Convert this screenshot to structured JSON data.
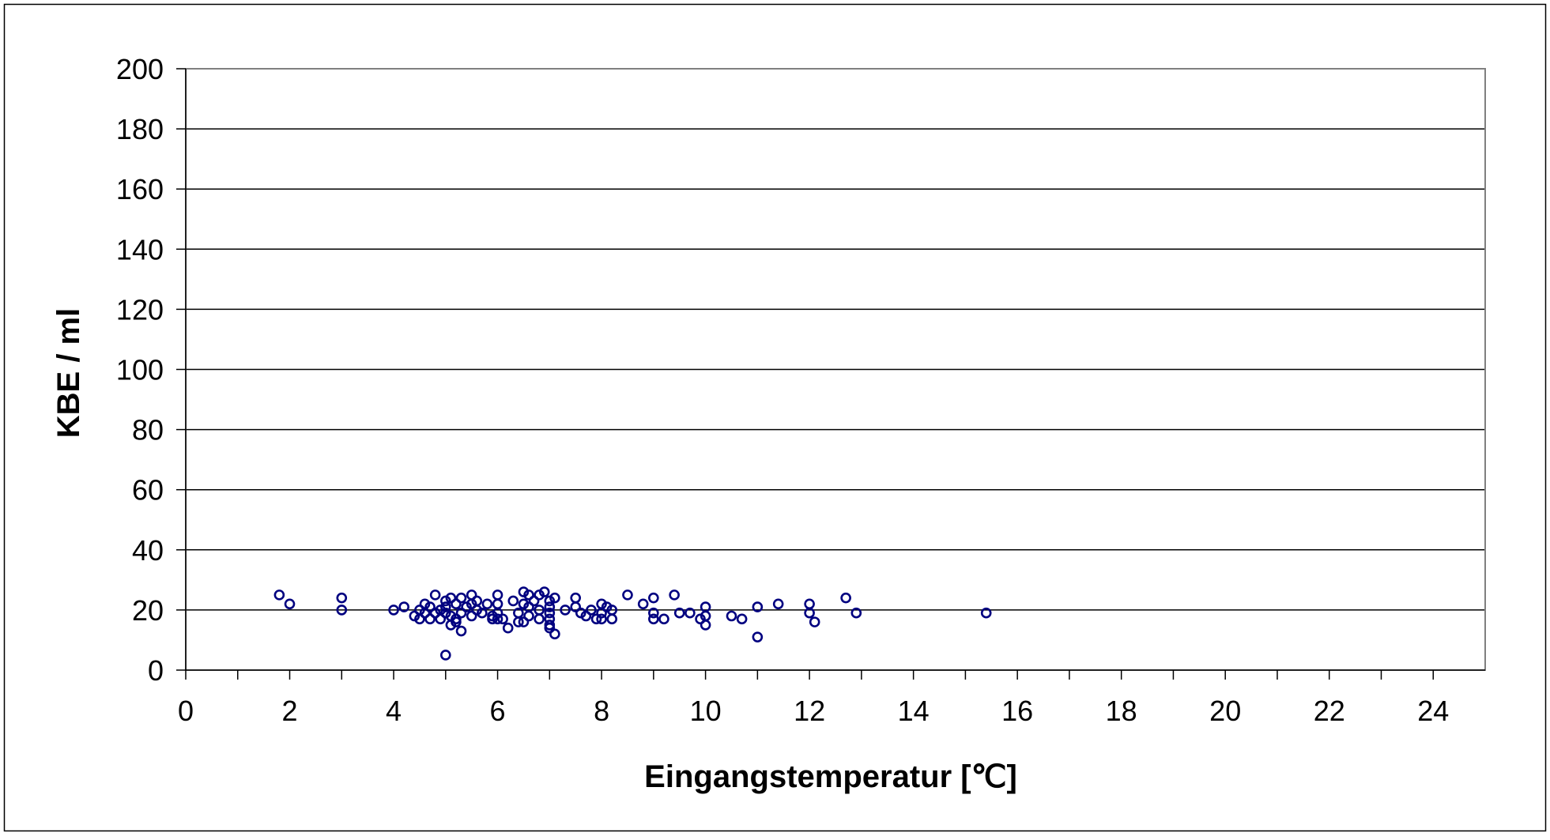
{
  "chart_data": {
    "type": "scatter",
    "title": "",
    "xlabel": "Eingangstemperatur [℃]",
    "ylabel": "KBE / ml",
    "xlim": [
      0,
      25
    ],
    "ylim": [
      0,
      200
    ],
    "x_ticks": [
      "0",
      "2",
      "4",
      "6",
      "8",
      "10",
      "12",
      "14",
      "16",
      "18",
      "20",
      "22",
      "24"
    ],
    "y_ticks": [
      "0",
      "20",
      "40",
      "60",
      "80",
      "100",
      "120",
      "140",
      "160",
      "180",
      "200"
    ],
    "grid": "horizontal",
    "legend": "none",
    "colors": {
      "marker": "#000080",
      "grid": "#000000",
      "plot_border": "#808080",
      "text": "#000000"
    },
    "series": [
      {
        "marker": "open-circle",
        "points": [
          [
            1.8,
            25
          ],
          [
            2.0,
            22
          ],
          [
            3.0,
            24
          ],
          [
            3.0,
            20
          ],
          [
            4.0,
            20
          ],
          [
            4.2,
            21
          ],
          [
            4.4,
            18
          ],
          [
            4.5,
            17
          ],
          [
            4.5,
            20
          ],
          [
            4.6,
            22
          ],
          [
            4.6,
            19
          ],
          [
            4.7,
            17
          ],
          [
            4.7,
            21
          ],
          [
            4.8,
            25
          ],
          [
            4.8,
            19
          ],
          [
            4.9,
            20
          ],
          [
            4.9,
            17
          ],
          [
            5.0,
            23
          ],
          [
            5.0,
            21
          ],
          [
            5.0,
            19
          ],
          [
            5.0,
            5
          ],
          [
            5.1,
            24
          ],
          [
            5.1,
            18
          ],
          [
            5.1,
            15
          ],
          [
            5.2,
            22
          ],
          [
            5.2,
            17
          ],
          [
            5.2,
            16
          ],
          [
            5.3,
            24
          ],
          [
            5.3,
            19
          ],
          [
            5.3,
            13
          ],
          [
            5.4,
            21
          ],
          [
            5.5,
            25
          ],
          [
            5.5,
            22
          ],
          [
            5.5,
            18
          ],
          [
            5.6,
            23
          ],
          [
            5.6,
            20
          ],
          [
            5.7,
            19
          ],
          [
            5.8,
            22
          ],
          [
            5.9,
            18
          ],
          [
            5.9,
            17
          ],
          [
            6.0,
            25
          ],
          [
            6.0,
            22
          ],
          [
            6.0,
            19
          ],
          [
            6.0,
            17
          ],
          [
            6.1,
            17
          ],
          [
            6.2,
            14
          ],
          [
            6.3,
            23
          ],
          [
            6.4,
            19
          ],
          [
            6.4,
            16
          ],
          [
            6.5,
            26
          ],
          [
            6.5,
            22
          ],
          [
            6.5,
            16
          ],
          [
            6.6,
            25
          ],
          [
            6.6,
            21
          ],
          [
            6.6,
            18
          ],
          [
            6.7,
            23
          ],
          [
            6.8,
            25
          ],
          [
            6.8,
            20
          ],
          [
            6.8,
            17
          ],
          [
            6.9,
            26
          ],
          [
            7.0,
            23
          ],
          [
            7.0,
            21
          ],
          [
            7.0,
            19
          ],
          [
            7.0,
            17
          ],
          [
            7.0,
            15
          ],
          [
            7.0,
            14
          ],
          [
            7.1,
            12
          ],
          [
            7.1,
            24
          ],
          [
            7.3,
            20
          ],
          [
            7.5,
            24
          ],
          [
            7.5,
            21
          ],
          [
            7.6,
            19
          ],
          [
            7.7,
            18
          ],
          [
            7.8,
            20
          ],
          [
            7.9,
            17
          ],
          [
            8.0,
            22
          ],
          [
            8.0,
            19
          ],
          [
            8.0,
            17
          ],
          [
            8.1,
            21
          ],
          [
            8.2,
            17
          ],
          [
            8.2,
            20
          ],
          [
            8.5,
            25
          ],
          [
            8.8,
            22
          ],
          [
            9.0,
            24
          ],
          [
            9.0,
            19
          ],
          [
            9.0,
            17
          ],
          [
            9.2,
            17
          ],
          [
            9.4,
            25
          ],
          [
            9.5,
            19
          ],
          [
            9.7,
            19
          ],
          [
            9.9,
            17
          ],
          [
            10.0,
            21
          ],
          [
            10.0,
            18
          ],
          [
            10.0,
            15
          ],
          [
            10.5,
            18
          ],
          [
            10.7,
            17
          ],
          [
            11.0,
            21
          ],
          [
            11.0,
            11
          ],
          [
            11.4,
            22
          ],
          [
            12.0,
            22
          ],
          [
            12.0,
            19
          ],
          [
            12.1,
            16
          ],
          [
            12.7,
            24
          ],
          [
            12.9,
            19
          ],
          [
            15.4,
            19
          ]
        ]
      }
    ]
  }
}
